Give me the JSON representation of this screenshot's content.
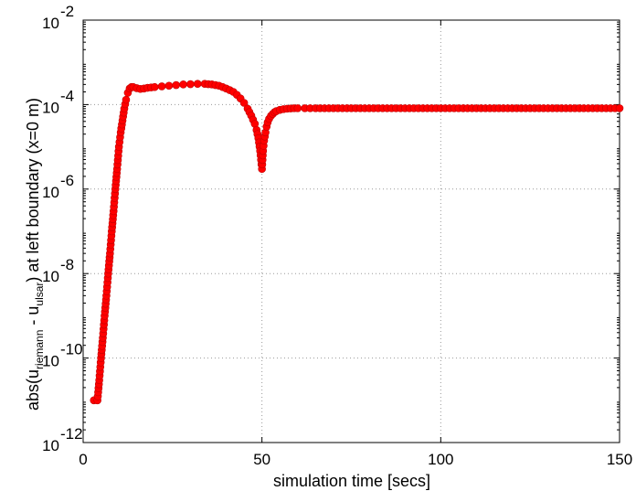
{
  "chart_data": {
    "type": "line",
    "title": "",
    "xlabel": "simulation time [secs]",
    "ylabel": {
      "prefix": "abs(u",
      "sub1": "riemann",
      "mid": " - u",
      "sub2": "ulsar",
      "suffix": ")    at left boundary  (x=0 m)"
    },
    "xlim": [
      0,
      150
    ],
    "ylim": [
      1e-12,
      0.01
    ],
    "yscale": "log",
    "grid": true,
    "xticks": [
      0,
      50,
      100,
      150
    ],
    "xtick_labels": [
      "0",
      "50",
      "100",
      "150"
    ],
    "yticks": [
      1e-12,
      1e-10,
      1e-08,
      1e-06,
      0.0001,
      0.01
    ],
    "ytick_labels": [
      {
        "base": "10",
        "exp": "-12"
      },
      {
        "base": "10",
        "exp": "-10"
      },
      {
        "base": "10",
        "exp": "-8"
      },
      {
        "base": "10",
        "exp": "-6"
      },
      {
        "base": "10",
        "exp": "-4"
      },
      {
        "base": "10",
        "exp": "-2"
      }
    ],
    "series": [
      {
        "color": "#ff0000",
        "marker": "circle",
        "x": [
          3,
          4,
          4.5,
          5,
          5.5,
          6,
          6.5,
          7,
          7.5,
          8,
          8.5,
          9,
          9.5,
          10,
          10.5,
          11,
          11.5,
          12,
          12.5,
          13,
          13.5,
          14,
          15,
          16,
          17,
          18,
          19,
          20,
          22,
          24,
          26,
          28,
          30,
          32,
          34,
          35,
          36,
          37,
          38,
          39,
          40,
          41,
          42,
          43,
          44,
          45,
          46,
          47,
          48,
          48.5,
          49,
          49.5,
          50,
          50.3,
          50.6,
          51,
          51.3,
          51.6,
          52,
          52.5,
          53,
          53.5,
          54,
          55,
          56,
          57,
          58,
          59,
          60,
          62,
          65,
          70,
          75,
          80,
          85,
          90,
          95,
          100,
          105,
          110,
          115,
          120,
          125,
          130,
          135,
          140,
          145,
          150
        ],
        "y": [
          1e-11,
          1e-11,
          3e-11,
          1e-10,
          3e-10,
          1e-09,
          3e-09,
          1e-08,
          3e-08,
          1e-07,
          3e-07,
          1e-06,
          3e-06,
          1e-05,
          2.2e-05,
          4.2e-05,
          8e-05,
          0.00013,
          0.00019,
          0.00024,
          0.00026,
          0.00026,
          0.000245,
          0.000235,
          0.00024,
          0.00025,
          0.000255,
          0.00026,
          0.00027,
          0.00028,
          0.00029,
          0.0003,
          0.000305,
          0.00031,
          0.00031,
          0.000305,
          0.0003,
          0.00029,
          0.00028,
          0.00026,
          0.00024,
          0.00022,
          0.0002,
          0.00017,
          0.00014,
          0.00011,
          8e-05,
          5.5e-05,
          3.5e-05,
          2.5e-05,
          1.6e-05,
          8e-06,
          3e-06,
          8e-06,
          1.4e-05,
          2.2e-05,
          3e-05,
          3.8e-05,
          4.6e-05,
          5.4e-05,
          6e-05,
          6.6e-05,
          7e-05,
          7.5e-05,
          7.8e-05,
          8e-05,
          8.1e-05,
          8.2e-05,
          8.2e-05,
          8.2e-05,
          8.2e-05,
          8.2e-05,
          8.2e-05,
          8.2e-05,
          8.2e-05,
          8.2e-05,
          8.2e-05,
          8.2e-05,
          8.2e-05,
          8.2e-05,
          8.2e-05,
          8.2e-05,
          8.2e-05,
          8.2e-05,
          8.2e-05,
          8.2e-05,
          8.2e-05,
          8.2e-05
        ]
      }
    ]
  }
}
